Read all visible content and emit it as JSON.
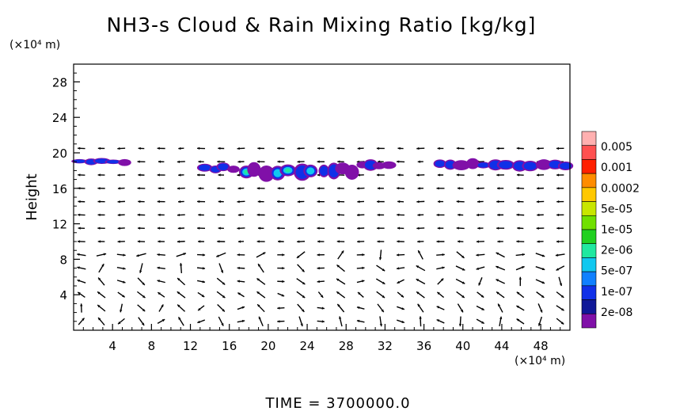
{
  "chart_data": {
    "type": "heatmap",
    "title": "NH3-s Cloud & Rain Mixing Ratio [kg/kg]",
    "subtitle": "TIME = 3700000.0",
    "xlabel": "",
    "ylabel": "Height",
    "x_unit": "(×10⁴ m)",
    "y_unit": "(×10⁴ m)",
    "xlim": [
      0,
      51
    ],
    "ylim": [
      0,
      30
    ],
    "x_ticks": [
      4,
      8,
      12,
      16,
      20,
      24,
      28,
      32,
      36,
      40,
      44,
      48
    ],
    "y_ticks": [
      4,
      8,
      12,
      16,
      20,
      24,
      28
    ],
    "colorbar": {
      "labels": [
        "0.005",
        "0.001",
        "0.0002",
        "5e-05",
        "1e-05",
        "2e-06",
        "5e-07",
        "1e-07",
        "2e-08"
      ],
      "colors": [
        "#ffb0b0",
        "#ff5050",
        "#ff2000",
        "#ff8c00",
        "#ffc800",
        "#c8e600",
        "#70e000",
        "#20d020",
        "#20e8a0",
        "#10c8f0",
        "#1080ff",
        "#1030e8",
        "#101898",
        "#8010a8"
      ]
    },
    "cloud_regions": [
      {
        "x_range": [
          0,
          6
        ],
        "y_range": [
          18.6,
          19.4
        ],
        "max_level": "1e-07"
      },
      {
        "x_range": [
          13,
          17
        ],
        "y_range": [
          17.6,
          19.0
        ],
        "max_level": "1e-07"
      },
      {
        "x_range": [
          17,
          25
        ],
        "y_range": [
          16.8,
          19.0
        ],
        "max_level": "2e-06"
      },
      {
        "x_range": [
          25,
          29
        ],
        "y_range": [
          17.0,
          19.0
        ],
        "max_level": "2e-06"
      },
      {
        "x_range": [
          29,
          33
        ],
        "y_range": [
          17.8,
          19.2
        ],
        "max_level": "2e-06"
      },
      {
        "x_range": [
          37,
          51
        ],
        "y_range": [
          18.0,
          19.3
        ],
        "max_level": "1e-07"
      }
    ]
  }
}
